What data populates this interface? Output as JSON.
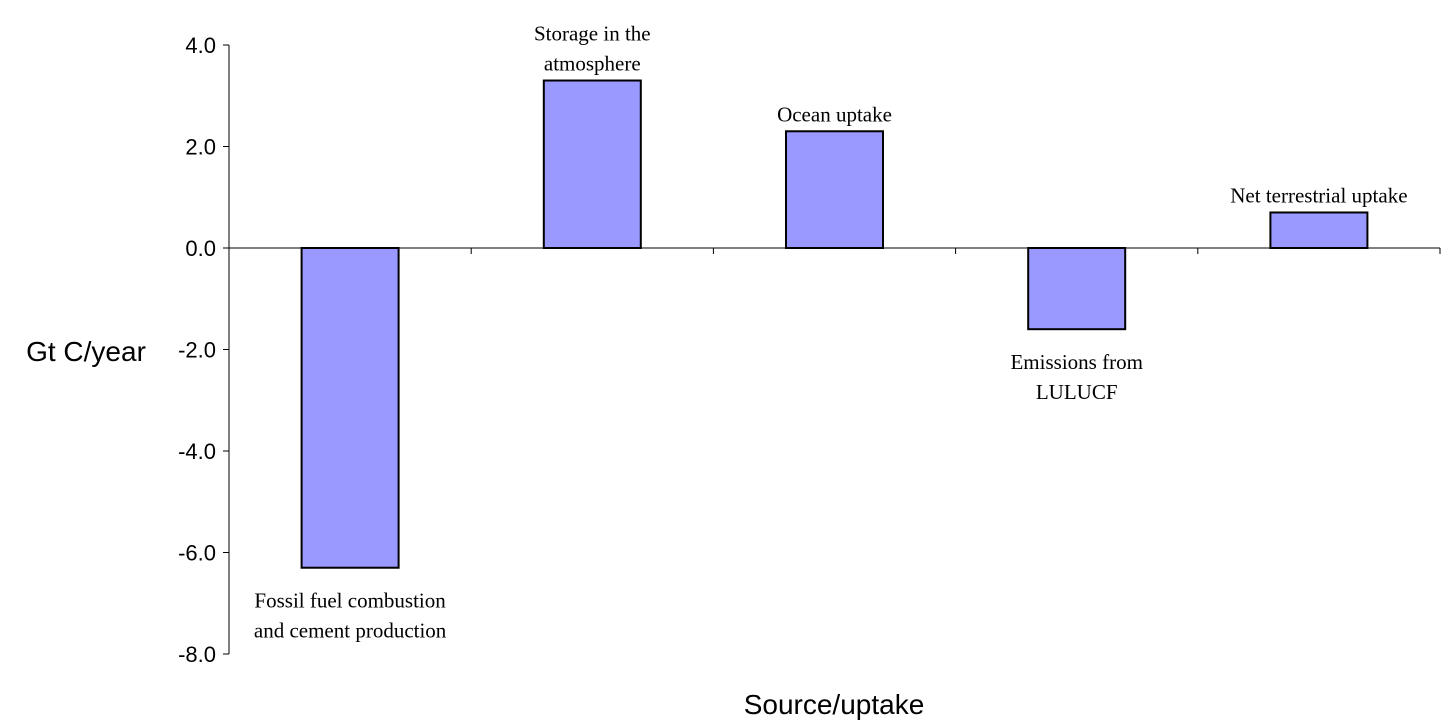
{
  "chart_data": {
    "type": "bar",
    "categories": [
      "Fossil fuel combustion and cement production",
      "Storage in the atmosphere",
      "Ocean uptake",
      "Emissions from LULUCF",
      "Net terrestrial uptake"
    ],
    "category_label_lines": [
      [
        "Fossil fuel combustion",
        "and cement production"
      ],
      [
        "Storage in the",
        "atmosphere"
      ],
      [
        "Ocean uptake"
      ],
      [
        "Emissions from",
        "LULUCF"
      ],
      [
        "Net terrestrial uptake"
      ]
    ],
    "values": [
      -6.3,
      3.3,
      2.3,
      -1.6,
      0.7
    ],
    "xlabel": "Source/uptake",
    "ylabel": "Gt C/year",
    "ylim": [
      -8.0,
      4.0
    ],
    "yticks": [
      4.0,
      2.0,
      0.0,
      -2.0,
      -4.0,
      -6.0,
      -8.0
    ],
    "ytick_labels": [
      "4.0",
      "2.0",
      "0.0",
      "-2.0",
      "-4.0",
      "-6.0",
      "-8.0"
    ],
    "bar_color": "#9999ff",
    "grid": false,
    "legend": "none"
  }
}
